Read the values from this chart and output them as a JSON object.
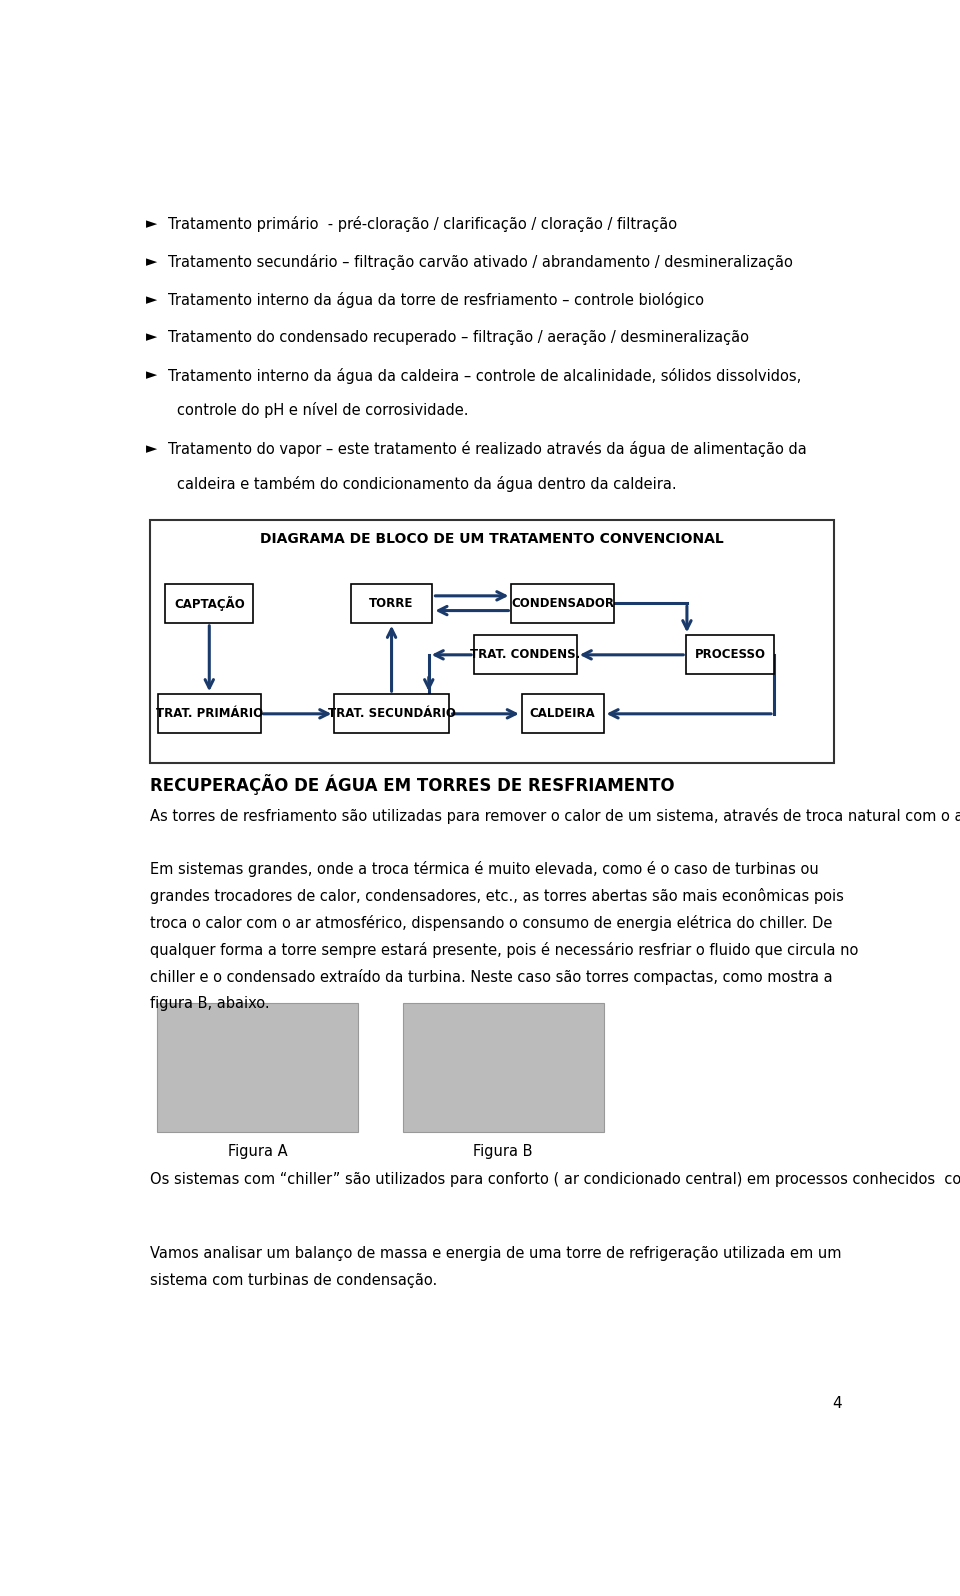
{
  "bg_color": "#ffffff",
  "page_number": "4",
  "bullet_items": [
    {
      "text": "Tratamento primário  - pré-cloração / clarificação / cloração / filtração",
      "two_line": false
    },
    {
      "text": "Tratamento secundário – filtração carvão ativado / abrandamento / desmineralização",
      "two_line": false
    },
    {
      "text": "Tratamento interno da água da torre de resfriamento – controle biológico",
      "two_line": false
    },
    {
      "text": "Tratamento do condensado recuperado – filtração / aeração / desmineralização",
      "two_line": false
    },
    {
      "text1": "Tratamento interno da água da caldeira – controle de alcalinidade, sólidos dissolvidos,",
      "text2": "controle do pH e nível de corrosividade.",
      "two_line": true
    },
    {
      "text1": "Tratamento do vapor – este tratamento é realizado através da água de alimentação da",
      "text2": "caldeira e também do condicionamento da água dentro da caldeira.",
      "two_line": true
    }
  ],
  "diagram_title": "DIAGRAMA DE BLOCO DE UM TRATAMENTO CONVENCIONAL",
  "section_title": "RECUPERAÇÃO DE ÁGUA EM TORRES DE RESFRIAMENTO",
  "para1": "As torres de resfriamento são utilizadas para remover o calor de um sistema, através de troca natural com o ar atmosférico ou com um líquido refrigerante através de um “chiller” que é uma “grande geladeira”. (figura A )",
  "para2_lines": [
    "Em sistemas grandes, onde a troca térmica é muito elevada, como é o caso de turbinas ou",
    "grandes trocadores de calor, condensadores, etc., as torres abertas são mais econômicas pois",
    "troca o calor com o ar atmosférico, dispensando o consumo de energia elétrica do chiller. De",
    "qualquer forma a torre sempre estará presente, pois é necessário resfriar o fluido que circula no",
    "chiller e o condensado extraído da turbina. Neste caso são torres compactas, como mostra a",
    "figura B, abaixo."
  ],
  "fig_a_caption": "Figura A",
  "fig_b_caption": "Figura B",
  "para3": "Os sistemas com “chiller” são utilizados para conforto ( ar condicionado central) em processos conhecidos  como HVAC – Heating, Ventilating, Air , Conditioning .",
  "para4_lines": [
    "Vamos analisar um balanço de massa e energia de uma torre de refrigeração utilizada em um",
    "sistema com turbinas de condensação."
  ],
  "arrow_color": "#1a3a6b",
  "node_border_color": "#000000",
  "node_bg_color": "#ffffff",
  "text_fontsize": 10.5,
  "bullet_fontsize": 10.5,
  "section_fontsize": 12,
  "diagram_title_fontsize": 10
}
